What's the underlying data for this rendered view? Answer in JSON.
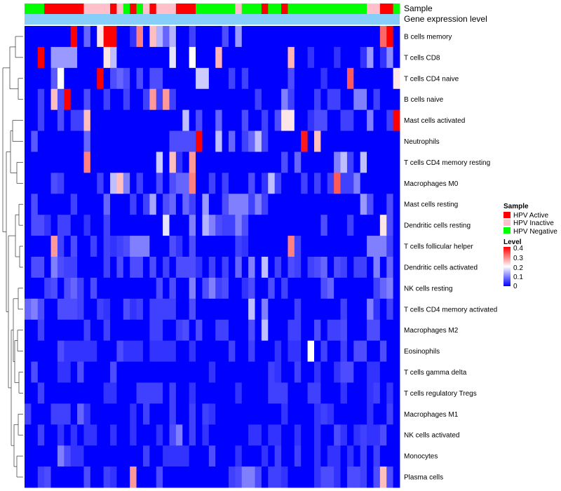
{
  "chart_data": {
    "type": "heatmap",
    "annotation_labels": [
      "Sample",
      "Gene expression level"
    ],
    "column_groups": [
      "Negative",
      "Negative",
      "Negative",
      "Active",
      "Active",
      "Active",
      "Active",
      "Active",
      "Active",
      "Inactive",
      "Inactive",
      "Inactive",
      "Inactive",
      "Active",
      "Inactive",
      "Negative",
      "Active",
      "Negative",
      "Inactive",
      "Active",
      "Inactive",
      "Inactive",
      "Inactive",
      "Active",
      "Active",
      "Active",
      "Negative",
      "Negative",
      "Negative",
      "Negative",
      "Negative",
      "Negative",
      "Inactive",
      "Negative",
      "Negative",
      "Negative",
      "Active",
      "Negative",
      "Negative",
      "Active",
      "Negative",
      "Negative",
      "Negative",
      "Negative",
      "Negative",
      "Negative",
      "Negative",
      "Negative",
      "Negative",
      "Negative",
      "Negative",
      "Negative",
      "Inactive",
      "Inactive",
      "Active",
      "Active",
      "Negative"
    ],
    "row_labels": [
      "B cells memory",
      "T cells CD8",
      "T cells CD4 naive",
      "B cells naive",
      "Mast cells activated",
      "Neutrophils",
      "T cells CD4 memory resting",
      "Macrophages M0",
      "Mast cells resting",
      "Dendritic cells resting",
      "T cells follicular helper",
      "Dendritic cells activated",
      "NK cells resting",
      "T cells CD4 memory activated",
      "Macrophages M2",
      "Eosinophils",
      "T cells gamma delta",
      "T cells regulatory  Tregs",
      "Macrophages M1",
      "NK cells activated",
      "Monocytes",
      "Plasma cells"
    ],
    "matrix": [
      [
        0,
        0,
        0,
        0,
        0,
        0,
        0,
        0.4,
        0,
        0.08,
        0,
        0.22,
        0.4,
        0.4,
        0,
        0,
        0.04,
        0.3,
        0,
        0.25,
        0.14,
        0.08,
        0.14,
        0,
        0,
        0.05,
        0,
        0,
        0,
        0,
        0.06,
        0,
        0.12,
        0,
        0,
        0,
        0,
        0,
        0,
        0,
        0,
        0,
        0,
        0,
        0,
        0,
        0,
        0,
        0,
        0,
        0,
        0,
        0,
        0,
        0.32,
        0.4,
        0
      ],
      [
        0,
        0,
        0.4,
        0,
        0.12,
        0.12,
        0.12,
        0.12,
        0,
        0,
        0,
        0,
        0.22,
        0.15,
        0,
        0,
        0,
        0,
        0,
        0,
        0,
        0,
        0.18,
        0,
        0,
        0.2,
        0,
        0,
        0,
        0.26,
        0,
        0,
        0,
        0,
        0,
        0,
        0,
        0,
        0,
        0,
        0.26,
        0,
        0,
        0.04,
        0,
        0,
        0,
        0.04,
        0,
        0,
        0,
        0.04,
        0.12,
        0,
        0.04,
        0.11,
        0
      ],
      [
        0,
        0,
        0,
        0,
        0.07,
        0.2,
        0,
        0,
        0,
        0,
        0,
        0.4,
        0,
        0.06,
        0.08,
        0.06,
        0,
        0.06,
        0,
        0.06,
        0.06,
        0,
        0,
        0,
        0,
        0,
        0.16,
        0.16,
        0,
        0,
        0,
        0.05,
        0,
        0.05,
        0,
        0,
        0,
        0,
        0,
        0,
        0.06,
        0,
        0,
        0,
        0,
        0.04,
        0,
        0,
        0,
        0.33,
        0,
        0,
        0,
        0,
        0,
        0,
        0.22
      ],
      [
        0,
        0,
        0.05,
        0,
        0.25,
        0.06,
        0.4,
        0,
        0,
        0.06,
        0,
        0,
        0.05,
        0,
        0,
        0.05,
        0,
        0,
        0.05,
        0.28,
        0.05,
        0.28,
        0.05,
        0,
        0,
        0,
        0,
        0,
        0,
        0,
        0,
        0,
        0,
        0,
        0,
        0.05,
        0,
        0,
        0,
        0.1,
        0.05,
        0,
        0,
        0,
        0.05,
        0,
        0.05,
        0.05,
        0,
        0,
        0.1,
        0.1,
        0,
        0.05,
        0,
        0,
        0
      ],
      [
        0,
        0,
        0.05,
        0,
        0,
        0.06,
        0,
        0.05,
        0.05,
        0.25,
        0,
        0,
        0,
        0,
        0,
        0,
        0,
        0,
        0,
        0,
        0,
        0,
        0,
        0,
        0.15,
        0,
        0.06,
        0,
        0,
        0.08,
        0,
        0,
        0,
        0.06,
        0,
        0,
        0.05,
        0,
        0.06,
        0.22,
        0.22,
        0,
        0,
        0.04,
        0.06,
        0.06,
        0,
        0,
        0.05,
        0.05,
        0,
        0,
        0.1,
        0,
        0,
        0.05,
        0.4
      ],
      [
        0,
        0.07,
        0,
        0,
        0,
        0,
        0,
        0,
        0,
        0.08,
        0,
        0,
        0,
        0,
        0,
        0,
        0,
        0,
        0,
        0,
        0,
        0,
        0.06,
        0.06,
        0.06,
        0.06,
        0.4,
        0,
        0,
        0.15,
        0,
        0.08,
        0,
        0.05,
        0.08,
        0.15,
        0.05,
        0,
        0,
        0,
        0,
        0,
        0.38,
        0,
        0.25,
        0,
        0,
        0,
        0,
        0,
        0,
        0,
        0,
        0,
        0,
        0,
        0
      ],
      [
        0,
        0,
        0,
        0,
        0,
        0,
        0,
        0,
        0,
        0.3,
        0,
        0,
        0,
        0,
        0,
        0,
        0,
        0,
        0,
        0,
        0.16,
        0,
        0.25,
        0.04,
        0,
        0.28,
        0,
        0,
        0,
        0,
        0,
        0,
        0,
        0,
        0,
        0,
        0,
        0,
        0,
        0.06,
        0,
        0.08,
        0,
        0,
        0,
        0,
        0,
        0.1,
        0.15,
        0.05,
        0,
        0.15,
        0,
        0,
        0,
        0,
        0
      ],
      [
        0,
        0,
        0,
        0,
        0.06,
        0.05,
        0,
        0,
        0,
        0,
        0,
        0.05,
        0,
        0.15,
        0.25,
        0.1,
        0,
        0.05,
        0,
        0,
        0.06,
        0,
        0.06,
        0.08,
        0.08,
        0.3,
        0,
        0,
        0.05,
        0,
        0.05,
        0,
        0,
        0,
        0.06,
        0,
        0.04,
        0.15,
        0.05,
        0,
        0,
        0,
        0.05,
        0,
        0.05,
        0,
        0.05,
        0.33,
        0.05,
        0.05,
        0.1,
        0,
        0,
        0,
        0,
        0,
        0
      ],
      [
        0,
        0.06,
        0,
        0,
        0,
        0,
        0,
        0.05,
        0,
        0,
        0,
        0,
        0.08,
        0,
        0,
        0,
        0.05,
        0,
        0.05,
        0.13,
        0,
        0.06,
        0.08,
        0,
        0.08,
        0.05,
        0,
        0.12,
        0,
        0,
        0.06,
        0.1,
        0.1,
        0.1,
        0.05,
        0.1,
        0.05,
        0,
        0,
        0,
        0,
        0,
        0,
        0,
        0,
        0,
        0,
        0,
        0,
        0,
        0,
        0.12,
        0.06,
        0,
        0,
        0.06,
        0
      ],
      [
        0,
        0.06,
        0.06,
        0.04,
        0,
        0.05,
        0.05,
        0,
        0,
        0.04,
        0,
        0,
        0.05,
        0,
        0,
        0,
        0,
        0,
        0,
        0,
        0,
        0.18,
        0,
        0,
        0,
        0.1,
        0,
        0.14,
        0.1,
        0.06,
        0.05,
        0.05,
        0.1,
        0.06,
        0,
        0,
        0,
        0,
        0,
        0,
        0,
        0,
        0,
        0,
        0,
        0.06,
        0,
        0,
        0,
        0.05,
        0,
        0,
        0,
        0,
        0.22,
        0.06,
        0
      ],
      [
        0,
        0,
        0,
        0,
        0.28,
        0.05,
        0,
        0.06,
        0,
        0,
        0.05,
        0,
        0.05,
        0.04,
        0.05,
        0.06,
        0.1,
        0.1,
        0.1,
        0,
        0,
        0,
        0.06,
        0.04,
        0,
        0.06,
        0,
        0,
        0,
        0,
        0,
        0,
        0.05,
        0.04,
        0,
        0,
        0,
        0,
        0,
        0,
        0.3,
        0.05,
        0,
        0,
        0,
        0,
        0,
        0,
        0,
        0,
        0,
        0,
        0.1,
        0.1,
        0.1,
        0.05,
        0
      ],
      [
        0,
        0.06,
        0.06,
        0,
        0.1,
        0.06,
        0.05,
        0.05,
        0,
        0,
        0,
        0,
        0.05,
        0,
        0.06,
        0,
        0.06,
        0.06,
        0,
        0.06,
        0,
        0.05,
        0,
        0.06,
        0.06,
        0.06,
        0.04,
        0,
        0.05,
        0,
        0.05,
        0,
        0.08,
        0,
        0.1,
        0,
        0.15,
        0,
        0.05,
        0,
        0.06,
        0.05,
        0,
        0.05,
        0.06,
        0.08,
        0,
        0.06,
        0.05,
        0,
        0.05,
        0.05,
        0,
        0.1,
        0,
        0.08,
        0
      ],
      [
        0,
        0,
        0,
        0.05,
        0.06,
        0,
        0.06,
        0.08,
        0.05,
        0,
        0.06,
        0,
        0,
        0,
        0,
        0,
        0,
        0,
        0,
        0,
        0.06,
        0,
        0.06,
        0,
        0,
        0.1,
        0,
        0.06,
        0.1,
        0.05,
        0.06,
        0,
        0,
        0.04,
        0.06,
        0,
        0,
        0.06,
        0,
        0.05,
        0,
        0,
        0,
        0,
        0,
        0.06,
        0.08,
        0,
        0,
        0,
        0,
        0,
        0,
        0.05,
        0.08,
        0.1,
        0
      ],
      [
        0.08,
        0.1,
        0.06,
        0,
        0,
        0.06,
        0.06,
        0.06,
        0.05,
        0,
        0,
        0.05,
        0.04,
        0,
        0,
        0.06,
        0.04,
        0.05,
        0,
        0.05,
        0.05,
        0.05,
        0.05,
        0,
        0,
        0.06,
        0,
        0,
        0,
        0,
        0,
        0,
        0,
        0,
        0.15,
        0,
        0.1,
        0,
        0,
        0,
        0,
        0.05,
        0,
        0,
        0,
        0,
        0,
        0,
        0.05,
        0,
        0,
        0,
        0.1,
        0.04,
        0,
        0.05,
        0
      ],
      [
        0,
        0,
        0.05,
        0,
        0,
        0,
        0,
        0,
        0,
        0.05,
        0,
        0,
        0.05,
        0,
        0,
        0,
        0,
        0,
        0,
        0.05,
        0.05,
        0,
        0,
        0.05,
        0.06,
        0,
        0.06,
        0,
        0,
        0.05,
        0.05,
        0,
        0,
        0,
        0.06,
        0,
        0.15,
        0,
        0,
        0,
        0.05,
        0.05,
        0,
        0,
        0.06,
        0,
        0.05,
        0.05,
        0.06,
        0,
        0,
        0,
        0.06,
        0.06,
        0,
        0,
        0
      ],
      [
        0,
        0,
        0,
        0,
        0,
        0.06,
        0.04,
        0.04,
        0.04,
        0.04,
        0.04,
        0,
        0,
        0,
        0.06,
        0.04,
        0.04,
        0.04,
        0,
        0.04,
        0.04,
        0.04,
        0.04,
        0,
        0,
        0.04,
        0,
        0,
        0,
        0,
        0,
        0.05,
        0,
        0,
        0.05,
        0,
        0,
        0,
        0.04,
        0,
        0.04,
        0.04,
        0,
        0.2,
        0,
        0.05,
        0,
        0,
        0.05,
        0,
        0.06,
        0.06,
        0,
        0,
        0.06,
        0,
        0
      ],
      [
        0,
        0.06,
        0,
        0,
        0,
        0.04,
        0.04,
        0,
        0.06,
        0,
        0,
        0,
        0,
        0.06,
        0,
        0,
        0,
        0,
        0,
        0,
        0,
        0,
        0,
        0,
        0,
        0,
        0,
        0,
        0.04,
        0,
        0,
        0,
        0,
        0,
        0,
        0,
        0,
        0.05,
        0.04,
        0,
        0,
        0.05,
        0,
        0,
        0.04,
        0,
        0,
        0.04,
        0.06,
        0.06,
        0,
        0,
        0.04,
        0.04,
        0,
        0,
        0
      ],
      [
        0,
        0,
        0.05,
        0,
        0,
        0,
        0,
        0,
        0,
        0,
        0,
        0,
        0.04,
        0.04,
        0,
        0,
        0,
        0.05,
        0.05,
        0.05,
        0.05,
        0,
        0.05,
        0,
        0,
        0.04,
        0,
        0,
        0,
        0,
        0,
        0,
        0.04,
        0,
        0,
        0,
        0,
        0.05,
        0.05,
        0.05,
        0,
        0,
        0,
        0.05,
        0.05,
        0,
        0,
        0,
        0.04,
        0,
        0,
        0,
        0.04,
        0.05,
        0,
        0.04,
        0
      ],
      [
        0.05,
        0,
        0,
        0,
        0.05,
        0.05,
        0.05,
        0,
        0.08,
        0.04,
        0,
        0,
        0,
        0,
        0,
        0,
        0.04,
        0,
        0.05,
        0,
        0,
        0,
        0.05,
        0,
        0,
        0.05,
        0,
        0.05,
        0.04,
        0,
        0,
        0,
        0,
        0,
        0,
        0,
        0,
        0,
        0,
        0.04,
        0,
        0,
        0,
        0,
        0.04,
        0.05,
        0.04,
        0,
        0,
        0,
        0,
        0,
        0.04,
        0,
        0,
        0.05,
        0
      ],
      [
        0,
        0,
        0.05,
        0,
        0,
        0.04,
        0,
        0.04,
        0,
        0.04,
        0.04,
        0,
        0,
        0.04,
        0,
        0,
        0.04,
        0,
        0,
        0,
        0.04,
        0,
        0.06,
        0.1,
        0,
        0.05,
        0,
        0.04,
        0,
        0,
        0,
        0,
        0,
        0,
        0.04,
        0.04,
        0,
        0.04,
        0.04,
        0,
        0,
        0.04,
        0,
        0,
        0.04,
        0,
        0,
        0.06,
        0.04,
        0,
        0.04,
        0.05,
        0.04,
        0.04,
        0.06,
        0,
        0
      ],
      [
        0,
        0,
        0,
        0,
        0,
        0.1,
        0.06,
        0.04,
        0.04,
        0,
        0,
        0,
        0,
        0,
        0,
        0,
        0,
        0,
        0.05,
        0,
        0,
        0.04,
        0.04,
        0.04,
        0.04,
        0,
        0,
        0,
        0.06,
        0,
        0,
        0,
        0.04,
        0,
        0,
        0,
        0.04,
        0,
        0.05,
        0,
        0,
        0.05,
        0,
        0,
        0.04,
        0,
        0.04,
        0.04,
        0,
        0.04,
        0,
        0.05,
        0,
        0.05,
        0,
        0,
        0
      ],
      [
        0,
        0,
        0.05,
        0.06,
        0,
        0,
        0,
        0,
        0,
        0.06,
        0,
        0,
        0.05,
        0.04,
        0,
        0,
        0.28,
        0,
        0,
        0,
        0.06,
        0,
        0,
        0,
        0,
        0,
        0,
        0,
        0,
        0,
        0,
        0.05,
        0.06,
        0.1,
        0.1,
        0.06,
        0,
        0.05,
        0.05,
        0.04,
        0,
        0,
        0,
        0,
        0.04,
        0.06,
        0.06,
        0.04,
        0,
        0.06,
        0.06,
        0.05,
        0,
        0.06,
        0.25,
        0.06,
        0
      ]
    ],
    "legend": [
      {
        "title": "Sample",
        "items": [
          {
            "label": "HPV Active",
            "color": "#ff0000"
          },
          {
            "label": "HPV Inactive",
            "color": "#ffc0cb"
          },
          {
            "label": "HPV Negative",
            "color": "#00ff00"
          }
        ]
      },
      {
        "title": "Level",
        "ticks": [
          "0.4",
          "0.3",
          "0.2",
          "0.1",
          "0"
        ],
        "range": [
          0,
          0.4
        ]
      }
    ],
    "colors": {
      "low": "#0000ff",
      "mid": "#ffffff",
      "high": "#ff0000",
      "expression_bar": "#87cefa"
    }
  }
}
